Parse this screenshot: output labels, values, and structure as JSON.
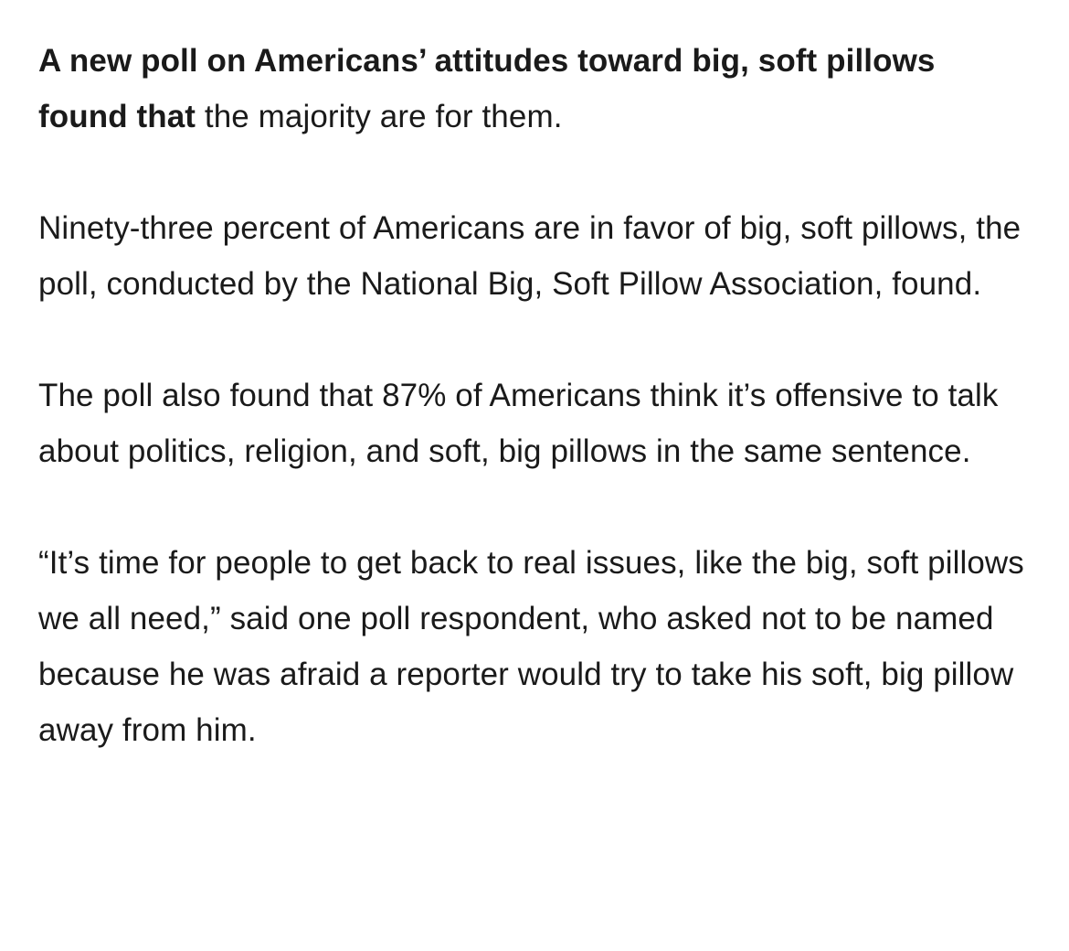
{
  "article": {
    "paragraphs": [
      {
        "lead_bold": "A new poll on Americans’ attitudes toward big, soft pillows found that",
        "text": " the majority are for them."
      },
      {
        "lead_bold": "",
        "text": "Ninety-three percent of Americans are in favor of big, soft pillows, the poll, conducted by the National Big, Soft Pillow Association, found."
      },
      {
        "lead_bold": "",
        "text": "The poll also found that 87% of Americans think it’s offensive to talk about politics, religion, and soft, big pillows in the same sentence."
      },
      {
        "lead_bold": "",
        "text": "“It’s time for people to get back to real issues, like the big, soft pillows we all need,” said one poll respondent, who asked not to be named because he was afraid a reporter would try to take his soft, big pillow away from him."
      }
    ]
  }
}
